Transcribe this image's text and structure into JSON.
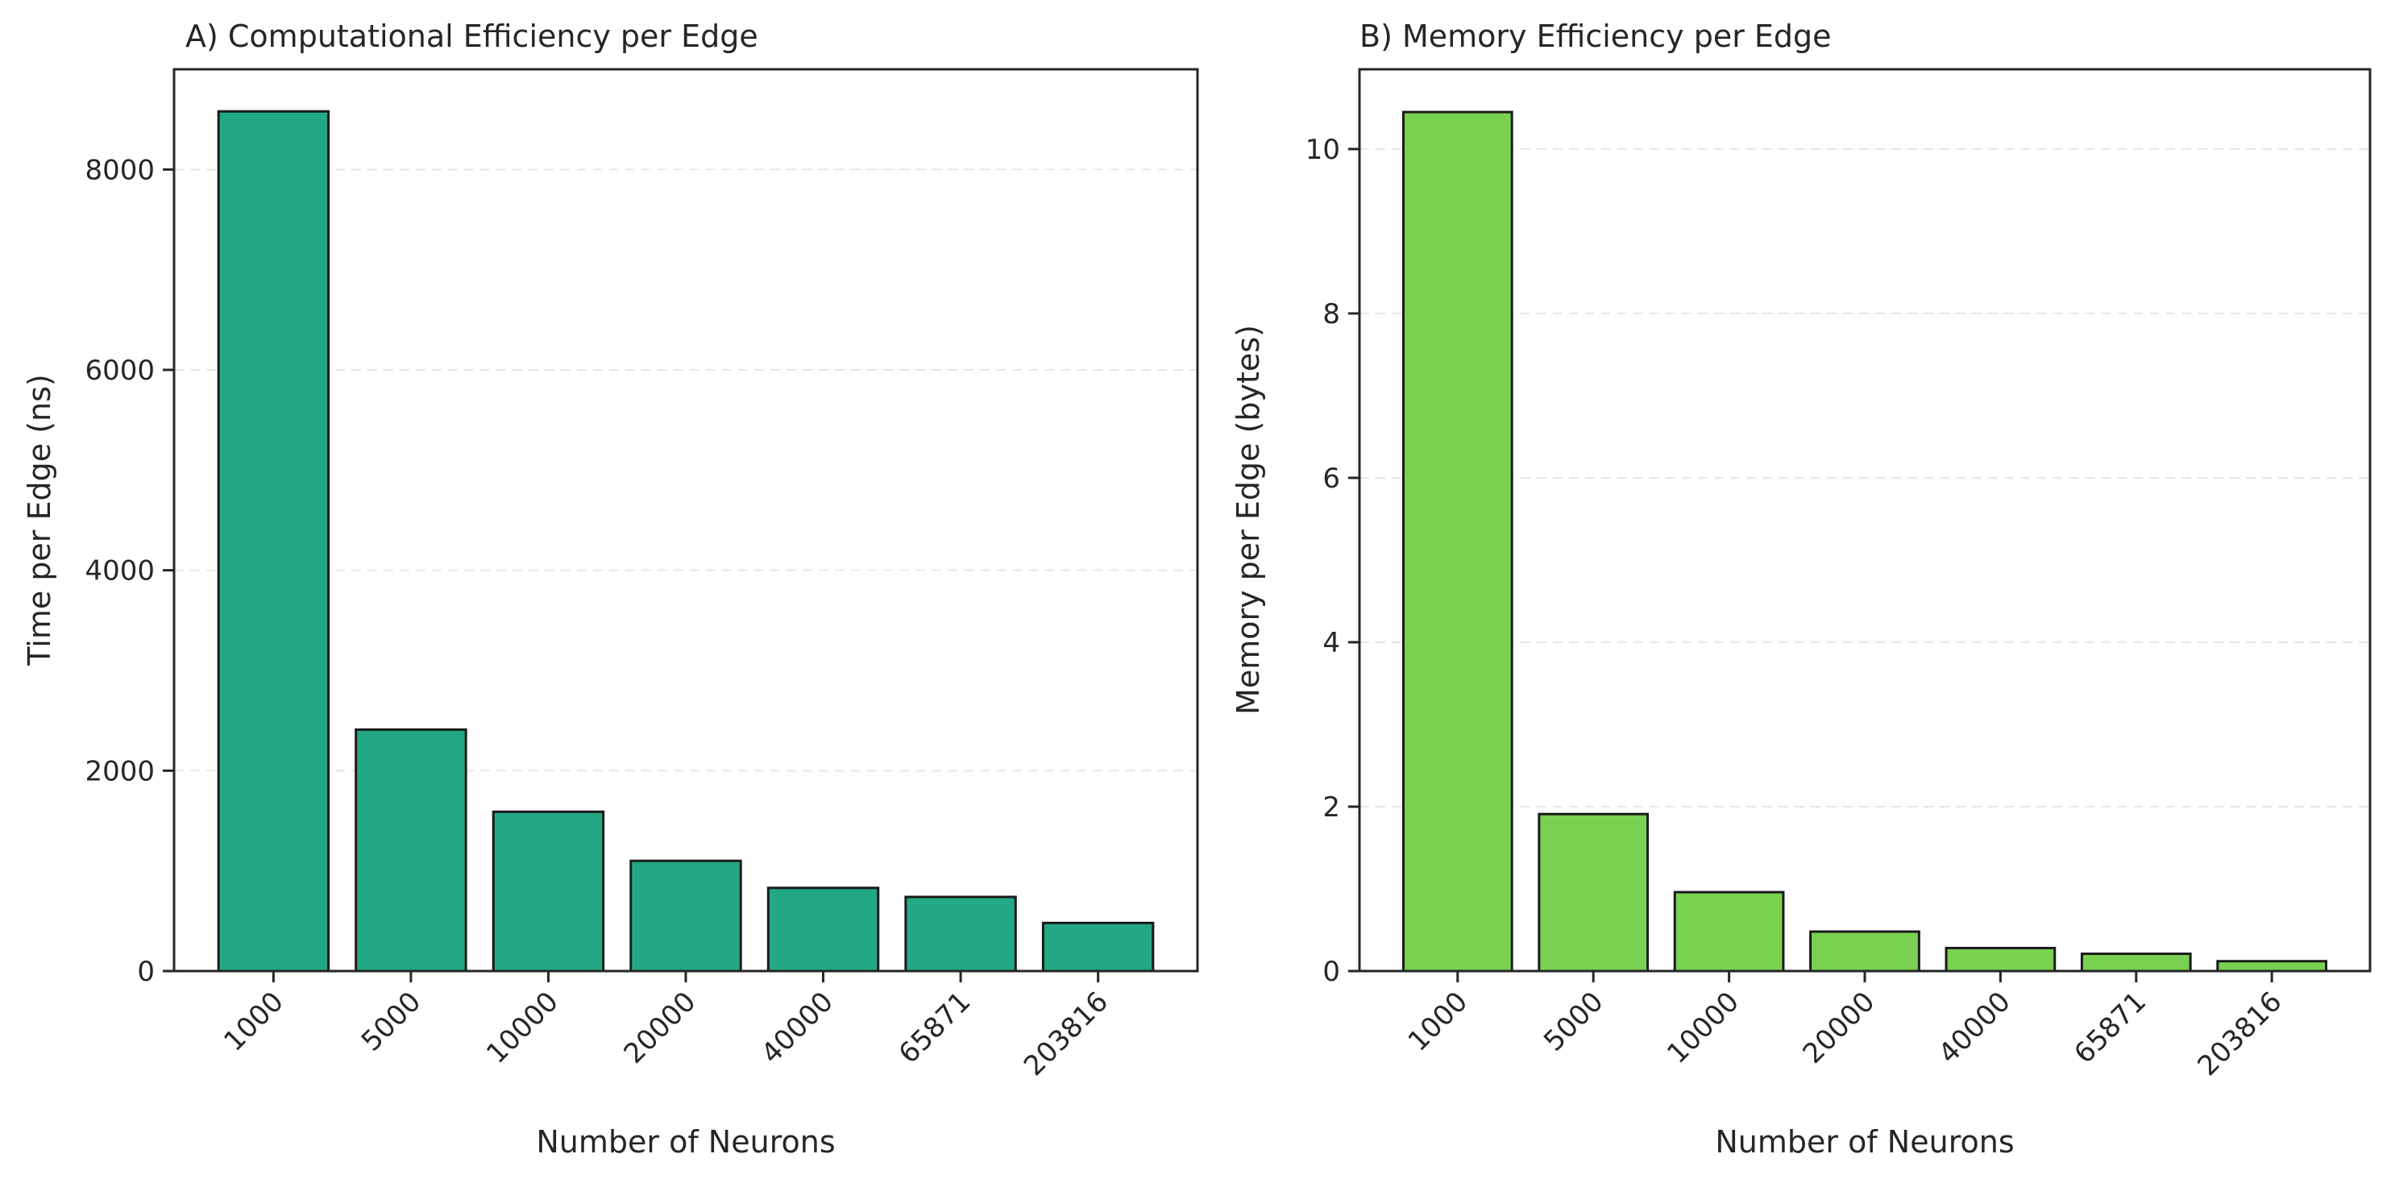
{
  "chart_data": [
    {
      "type": "bar",
      "title": "A) Computational Efficiency per Edge",
      "xlabel": "Number of Neurons",
      "ylabel": "Time per Edge (ns)",
      "categories": [
        "1000",
        "5000",
        "10000",
        "20000",
        "40000",
        "65871",
        "203816"
      ],
      "values": [
        8580,
        2410,
        1590,
        1100,
        830,
        740,
        480
      ],
      "ylim": [
        0,
        9000
      ],
      "yticks": [
        0,
        2000,
        4000,
        6000,
        8000
      ],
      "ytick_labels": [
        "0",
        "2000",
        "4000",
        "6000",
        "8000"
      ],
      "bar_color": "#22a884",
      "grid": "y, dashed",
      "legend": "none"
    },
    {
      "type": "bar",
      "title": "B) Memory Efficiency per Edge",
      "xlabel": "Number of Neurons",
      "ylabel": "Memory per Edge (bytes)",
      "categories": [
        "1000",
        "5000",
        "10000",
        "20000",
        "40000",
        "65871",
        "203816"
      ],
      "values": [
        10.45,
        1.91,
        0.96,
        0.48,
        0.28,
        0.21,
        0.12
      ],
      "ylim": [
        0,
        10.97
      ],
      "yticks": [
        0,
        2,
        4,
        6,
        8,
        10
      ],
      "ytick_labels": [
        "0",
        "2",
        "4",
        "6",
        "8",
        "10"
      ],
      "bar_color": "#7ad151",
      "grid": "y, dashed",
      "legend": "none"
    }
  ]
}
